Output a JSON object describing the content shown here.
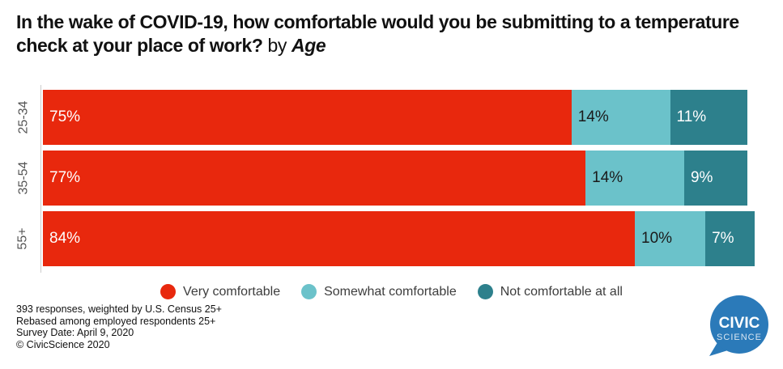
{
  "title": {
    "question": "In the wake of COVID-19, how comfortable would you be submitting to a temperature check at your place of work?",
    "connector": " by ",
    "group": "Age"
  },
  "chart_data": {
    "type": "bar",
    "orientation": "horizontal",
    "stacked": true,
    "title": "In the wake of COVID-19, how comfortable would you be submitting to a temperature check at your place of work? by Age",
    "categories": [
      "25-34",
      "35-54",
      "55+"
    ],
    "series": [
      {
        "name": "Very comfortable",
        "color": "#e8280d",
        "label_color": "#ffffff",
        "values": [
          75,
          77,
          84
        ]
      },
      {
        "name": "Somewhat comfortable",
        "color": "#6bc2ca",
        "label_color": "#1a1a1a",
        "values": [
          14,
          14,
          10
        ]
      },
      {
        "name": "Not comfortable at all",
        "color": "#2d808c",
        "label_color": "#ffffff",
        "values": [
          11,
          9,
          7
        ]
      }
    ],
    "value_suffix": "%",
    "xlim": [
      0,
      101
    ],
    "grid": false,
    "legend_position": "bottom"
  },
  "footer": {
    "lines": [
      "393 responses, weighted by U.S. Census 25+",
      "Rebased among employed respondents 25+",
      "Survey Date: April 9, 2020",
      "© CivicScience 2020"
    ]
  },
  "logo": {
    "line1": "CIVIC",
    "line2": "SCIENCE",
    "color": "#2b7ab9"
  },
  "colors": {
    "axis_line": "#cccccc",
    "title_text": "#111111",
    "legend_text": "#3d3d3d"
  }
}
